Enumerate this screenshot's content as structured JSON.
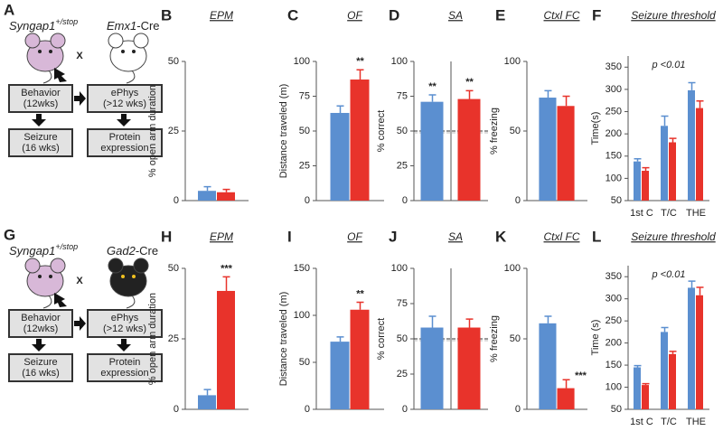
{
  "diagrams": [
    {
      "panel": "A",
      "strain": "Syngap1",
      "genotype": "+/stop",
      "cross": "X",
      "cre_gene": "Emx1",
      "cre_suffix": "-Cre",
      "boxes": [
        [
          "Behavior",
          "(12wks)"
        ],
        [
          "ePhys",
          "(>12 wks)"
        ],
        [
          "Seizure",
          "(16 wks)"
        ],
        [
          "Protein",
          "expression"
        ]
      ]
    },
    {
      "panel": "G",
      "strain": "Syngap1",
      "genotype": "+/stop",
      "cross": "X",
      "cre_gene": "Gad2",
      "cre_suffix": "-Cre",
      "boxes": [
        [
          "Behavior",
          "(12wks)"
        ],
        [
          "ePhys",
          "(>12 wks)"
        ],
        [
          "Seizure",
          "(16 wks)"
        ],
        [
          "Protein",
          "expression"
        ]
      ]
    }
  ],
  "chart_data": [
    {
      "type": "bar",
      "panel": "B",
      "title": "EPM",
      "ylabel": "% open arm duration",
      "ylim": [
        0,
        50
      ],
      "yticks": [
        0,
        25,
        50
      ],
      "series": [
        {
          "color": "#5b8fd0",
          "values": [
            3.5
          ],
          "errors": [
            1.5
          ]
        },
        {
          "color": "#e8332b",
          "values": [
            3
          ],
          "errors": [
            1
          ]
        }
      ]
    },
    {
      "type": "bar",
      "panel": "C",
      "title": "OF",
      "ylabel": "Distance traveled (m)",
      "ylim": [
        0,
        100
      ],
      "yticks": [
        0,
        25,
        50,
        75,
        100
      ],
      "series": [
        {
          "color": "#5b8fd0",
          "values": [
            63
          ],
          "errors": [
            5
          ]
        },
        {
          "color": "#e8332b",
          "values": [
            87
          ],
          "errors": [
            7
          ],
          "labels": [
            "**"
          ]
        }
      ]
    },
    {
      "type": "bar",
      "panel": "D",
      "title": "SA",
      "ylabel": "% correct",
      "ylim": [
        0,
        100
      ],
      "yticks": [
        0,
        25,
        50,
        75,
        100
      ],
      "reference_line": 50,
      "split": true,
      "series": [
        {
          "color": "#5b8fd0",
          "values": [
            71
          ],
          "errors": [
            5
          ],
          "labels": [
            "**"
          ]
        },
        {
          "color": "#e8332b",
          "values": [
            73
          ],
          "errors": [
            6
          ],
          "labels": [
            "**"
          ]
        }
      ]
    },
    {
      "type": "bar",
      "panel": "E",
      "title": "Ctxl FC",
      "ylabel": "% freezing",
      "ylim": [
        0,
        100
      ],
      "yticks": [
        0,
        50,
        100
      ],
      "series": [
        {
          "color": "#5b8fd0",
          "values": [
            74
          ],
          "errors": [
            5
          ]
        },
        {
          "color": "#e8332b",
          "values": [
            68
          ],
          "errors": [
            7
          ]
        }
      ]
    },
    {
      "type": "bar",
      "panel": "F",
      "title": "Seizure threshold",
      "ylabel": "Time(s)",
      "annotation": "p <0.01",
      "ylim": [
        50,
        375
      ],
      "yticks": [
        50,
        100,
        150,
        200,
        250,
        300,
        350
      ],
      "categories": [
        "1st C",
        "T/C",
        "THE"
      ],
      "series": [
        {
          "color": "#5b8fd0",
          "values": [
            138,
            218,
            298
          ],
          "errors": [
            6,
            22,
            17
          ]
        },
        {
          "color": "#e8332b",
          "values": [
            117,
            181,
            258
          ],
          "errors": [
            7,
            9,
            16
          ]
        }
      ]
    },
    {
      "type": "bar",
      "panel": "H",
      "title": "EPM",
      "ylabel": "% open arm duration",
      "ylim": [
        0,
        50
      ],
      "yticks": [
        0,
        25,
        50
      ],
      "series": [
        {
          "color": "#5b8fd0",
          "values": [
            5
          ],
          "errors": [
            2
          ]
        },
        {
          "color": "#e8332b",
          "values": [
            42
          ],
          "errors": [
            5
          ],
          "labels": [
            "***"
          ]
        }
      ]
    },
    {
      "type": "bar",
      "panel": "I",
      "title": "OF",
      "ylabel": "Distance traveled (m)",
      "ylim": [
        0,
        150
      ],
      "yticks": [
        0,
        50,
        100,
        150
      ],
      "series": [
        {
          "color": "#5b8fd0",
          "values": [
            72
          ],
          "errors": [
            5
          ]
        },
        {
          "color": "#e8332b",
          "values": [
            106
          ],
          "errors": [
            8
          ],
          "labels": [
            "**"
          ]
        }
      ]
    },
    {
      "type": "bar",
      "panel": "J",
      "title": "SA",
      "ylabel": "% correct",
      "ylim": [
        0,
        100
      ],
      "yticks": [
        0,
        25,
        50,
        75,
        100
      ],
      "reference_line": 50,
      "split": true,
      "series": [
        {
          "color": "#5b8fd0",
          "values": [
            58
          ],
          "errors": [
            8
          ]
        },
        {
          "color": "#e8332b",
          "values": [
            58
          ],
          "errors": [
            6
          ]
        }
      ]
    },
    {
      "type": "bar",
      "panel": "K",
      "title": "Ctxl FC",
      "ylabel": "% freezing",
      "ylim": [
        0,
        100
      ],
      "yticks": [
        0,
        50,
        100
      ],
      "series": [
        {
          "color": "#5b8fd0",
          "values": [
            61
          ],
          "errors": [
            5
          ]
        },
        {
          "color": "#e8332b",
          "values": [
            15
          ],
          "errors": [
            6
          ],
          "labels": [
            "***"
          ]
        }
      ]
    },
    {
      "type": "bar",
      "panel": "L",
      "title": "Seizure threshold",
      "ylabel": "Time (s)",
      "annotation": "p <0.01",
      "ylim": [
        50,
        375
      ],
      "yticks": [
        50,
        100,
        150,
        200,
        250,
        300,
        350
      ],
      "categories": [
        "1st C",
        "T/C",
        "THE"
      ],
      "series": [
        {
          "color": "#5b8fd0",
          "values": [
            145,
            225,
            325
          ],
          "errors": [
            4,
            10,
            15
          ]
        },
        {
          "color": "#e8332b",
          "values": [
            105,
            175,
            308
          ],
          "errors": [
            3,
            6,
            18
          ]
        }
      ]
    }
  ]
}
